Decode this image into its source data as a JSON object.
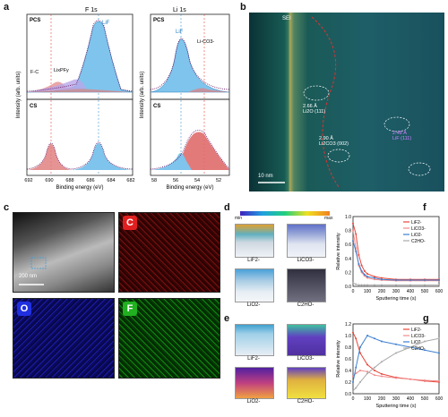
{
  "panels": {
    "a": {
      "letter": "a",
      "left_title": "F 1s",
      "right_title": "Li 1s",
      "xlabel": "Binding energy (eV)",
      "ylabel": "Intensity (arb. units)",
      "left_xticks": [
        "692",
        "690",
        "688",
        "686",
        "684",
        "682"
      ],
      "right_xticks": [
        "58",
        "56",
        "54",
        "52"
      ],
      "pcs": "PCS",
      "cs": "CS",
      "lif": "LiF",
      "fc": "F-C",
      "lipf": "LixPFy",
      "lico": "Li-CO3-"
    },
    "b": {
      "letter": "b",
      "sei": "SEI",
      "scale": "10 nm",
      "ann1": "2.66 Å\nLi2O (111)",
      "ann2": "2.90 Å\nLi2CO3 (002)",
      "ann3": "2.48 Å\nLiF (111)"
    },
    "c": {
      "letter": "c",
      "scale": "200 nm",
      "maps": [
        "C",
        "O",
        "F"
      ]
    },
    "d": {
      "letter": "d",
      "cmin": "min",
      "cmax": "max",
      "labels": [
        "LiF2-",
        "LiCO3-",
        "LiO2-",
        "C2HO-"
      ]
    },
    "e": {
      "letter": "e",
      "labels": [
        "LiF2-",
        "LiCO3-",
        "LiO2-",
        "C2HO-"
      ]
    },
    "f": {
      "letter": "f",
      "xlabel": "Sputtering time (s)",
      "ylabel": "Relative intensity",
      "xticks": [
        "0",
        "100",
        "200",
        "300",
        "400",
        "500",
        "600"
      ],
      "yticks": [
        "0.0",
        "0.2",
        "0.4",
        "0.6",
        "0.8",
        "1.0"
      ],
      "legend": [
        "LiF2-",
        "LiCO3-",
        "LiO2-",
        "C2HO-"
      ]
    },
    "g": {
      "letter": "g",
      "xlabel": "Sputtering time (s)",
      "ylabel": "Relative intensity",
      "xticks": [
        "0",
        "100",
        "200",
        "300",
        "400",
        "500",
        "600"
      ],
      "yticks": [
        "0.0",
        "0.2",
        "0.4",
        "0.6",
        "0.8",
        "1.0",
        "1.2"
      ],
      "legend": [
        "LiF2-",
        "LiCO3-",
        "LiO2-",
        "C2HO-"
      ]
    }
  },
  "chart_data": [
    {
      "type": "line",
      "panel": "f",
      "xlabel": "Sputtering time (s)",
      "ylabel": "Relative intensity",
      "xlim": [
        0,
        600
      ],
      "ylim": [
        0,
        1.0
      ],
      "x": [
        0,
        20,
        40,
        60,
        80,
        100,
        150,
        200,
        300,
        400,
        500,
        600
      ],
      "series": [
        {
          "name": "LiF2-",
          "color": "#e8463a",
          "values": [
            0.9,
            0.75,
            0.45,
            0.3,
            0.22,
            0.18,
            0.14,
            0.12,
            0.1,
            0.1,
            0.1,
            0.1
          ]
        },
        {
          "name": "LiCO3-",
          "color": "#f08a8a",
          "values": [
            0.8,
            0.55,
            0.3,
            0.2,
            0.15,
            0.12,
            0.1,
            0.09,
            0.08,
            0.08,
            0.08,
            0.08
          ]
        },
        {
          "name": "LiO2-",
          "color": "#3c7fcf",
          "values": [
            0.65,
            0.5,
            0.32,
            0.22,
            0.17,
            0.14,
            0.12,
            0.1,
            0.09,
            0.09,
            0.09,
            0.09
          ]
        },
        {
          "name": "C2HO-",
          "color": "#aaaaaa",
          "values": [
            0.05,
            0.03,
            0.02,
            0.02,
            0.02,
            0.02,
            0.02,
            0.02,
            0.02,
            0.02,
            0.02,
            0.02
          ]
        }
      ]
    },
    {
      "type": "line",
      "panel": "g",
      "xlabel": "Sputtering time (s)",
      "ylabel": "Relative intensity",
      "xlim": [
        0,
        600
      ],
      "ylim": [
        0,
        1.2
      ],
      "x": [
        0,
        20,
        50,
        100,
        150,
        200,
        300,
        400,
        500,
        600
      ],
      "series": [
        {
          "name": "LiF2-",
          "color": "#e8463a",
          "values": [
            1.05,
            0.95,
            0.7,
            0.5,
            0.4,
            0.34,
            0.28,
            0.25,
            0.22,
            0.2
          ]
        },
        {
          "name": "LiCO3-",
          "color": "#f08a8a",
          "values": [
            0.3,
            0.35,
            0.4,
            0.38,
            0.32,
            0.3,
            0.27,
            0.25,
            0.23,
            0.22
          ]
        },
        {
          "name": "LiO2-",
          "color": "#3c7fcf",
          "values": [
            0.2,
            0.45,
            0.8,
            1.0,
            0.95,
            0.9,
            0.85,
            0.8,
            0.75,
            0.7
          ]
        },
        {
          "name": "C2HO-",
          "color": "#aaaaaa",
          "values": [
            0.05,
            0.1,
            0.2,
            0.35,
            0.45,
            0.55,
            0.7,
            0.8,
            0.9,
            0.95
          ]
        }
      ]
    }
  ]
}
